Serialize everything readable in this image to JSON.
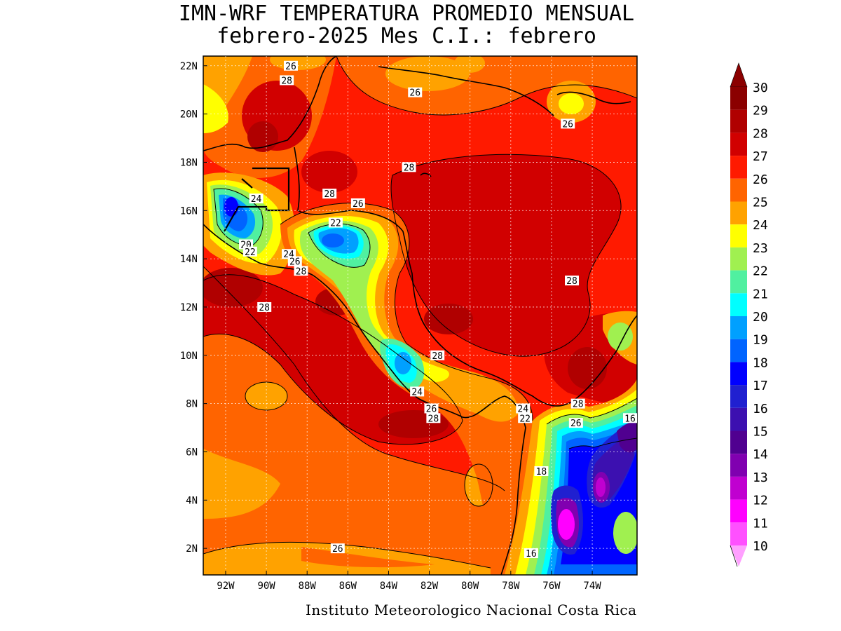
{
  "title_line1": "IMN-WRF  TEMPERATURA PROMEDIO MENSUAL",
  "title_line2": "febrero-2025 Mes C.I.: febrero",
  "credit": "Instituto Meteorologico Nacional Costa Rica",
  "map": {
    "lon_range": [
      -93.1,
      -71.8
    ],
    "lat_range": [
      0.9,
      22.4
    ],
    "lon_ticks": [
      {
        "value": -92,
        "label": "92W"
      },
      {
        "value": -90,
        "label": "90W"
      },
      {
        "value": -88,
        "label": "88W"
      },
      {
        "value": -86,
        "label": "86W"
      },
      {
        "value": -84,
        "label": "84W"
      },
      {
        "value": -82,
        "label": "82W"
      },
      {
        "value": -80,
        "label": "80W"
      },
      {
        "value": -78,
        "label": "78W"
      },
      {
        "value": -76,
        "label": "76W"
      },
      {
        "value": -74,
        "label": "74W"
      }
    ],
    "lat_ticks": [
      {
        "value": 22,
        "label": "22N"
      },
      {
        "value": 20,
        "label": "20N"
      },
      {
        "value": 18,
        "label": "18N"
      },
      {
        "value": 16,
        "label": "16N"
      },
      {
        "value": 14,
        "label": "14N"
      },
      {
        "value": 12,
        "label": "12N"
      },
      {
        "value": 10,
        "label": "10N"
      },
      {
        "value": 8,
        "label": "8N"
      },
      {
        "value": 6,
        "label": "6N"
      },
      {
        "value": 4,
        "label": "4N"
      },
      {
        "value": 2,
        "label": "2N"
      }
    ],
    "grid_lines": true,
    "contour_labels": [
      {
        "text": "26",
        "lon": -88.8,
        "lat": 22.0
      },
      {
        "text": "28",
        "lon": -89.0,
        "lat": 21.4
      },
      {
        "text": "26",
        "lon": -82.7,
        "lat": 20.9
      },
      {
        "text": "26",
        "lon": -75.2,
        "lat": 19.6
      },
      {
        "text": "28",
        "lon": -83.0,
        "lat": 17.8
      },
      {
        "text": "28",
        "lon": -86.9,
        "lat": 16.7
      },
      {
        "text": "26",
        "lon": -85.5,
        "lat": 16.3
      },
      {
        "text": "24",
        "lon": -90.5,
        "lat": 16.5
      },
      {
        "text": "22",
        "lon": -86.6,
        "lat": 15.5
      },
      {
        "text": "20",
        "lon": -91.0,
        "lat": 14.6
      },
      {
        "text": "22",
        "lon": -90.8,
        "lat": 14.3
      },
      {
        "text": "24",
        "lon": -88.9,
        "lat": 14.2
      },
      {
        "text": "26",
        "lon": -88.6,
        "lat": 13.9
      },
      {
        "text": "28",
        "lon": -88.3,
        "lat": 13.5
      },
      {
        "text": "28",
        "lon": -90.1,
        "lat": 12.0
      },
      {
        "text": "28",
        "lon": -75.0,
        "lat": 13.1
      },
      {
        "text": "28",
        "lon": -81.6,
        "lat": 10.0
      },
      {
        "text": "24",
        "lon": -82.6,
        "lat": 8.5
      },
      {
        "text": "26",
        "lon": -81.9,
        "lat": 7.8
      },
      {
        "text": "28",
        "lon": -81.8,
        "lat": 7.4
      },
      {
        "text": "24",
        "lon": -77.4,
        "lat": 7.8
      },
      {
        "text": "22",
        "lon": -77.3,
        "lat": 7.4
      },
      {
        "text": "28",
        "lon": -74.7,
        "lat": 8.0
      },
      {
        "text": "26",
        "lon": -74.8,
        "lat": 7.2
      },
      {
        "text": "16",
        "lon": -71.9,
        "lat": 7.4
      },
      {
        "text": "18",
        "lon": -76.5,
        "lat": 5.2
      },
      {
        "text": "16",
        "lon": -77.0,
        "lat": 1.8
      },
      {
        "text": "26",
        "lon": -86.5,
        "lat": 2.0
      }
    ]
  },
  "colorbar": {
    "levels": [
      {
        "label": "30",
        "color": "#8b0000"
      },
      {
        "label": "29",
        "color": "#b00000"
      },
      {
        "label": "28",
        "color": "#d10000"
      },
      {
        "label": "27",
        "color": "#ff1a00"
      },
      {
        "label": "26",
        "color": "#ff6400"
      },
      {
        "label": "25",
        "color": "#ffa200"
      },
      {
        "label": "24",
        "color": "#ffff00"
      },
      {
        "label": "23",
        "color": "#a0f050"
      },
      {
        "label": "22",
        "color": "#50f0a0"
      },
      {
        "label": "21",
        "color": "#00ffff"
      },
      {
        "label": "20",
        "color": "#00a0ff"
      },
      {
        "label": "19",
        "color": "#0064ff"
      },
      {
        "label": "18",
        "color": "#0000ff"
      },
      {
        "label": "17",
        "color": "#2020d0"
      },
      {
        "label": "16",
        "color": "#3c10b0"
      },
      {
        "label": "15",
        "color": "#500090"
      },
      {
        "label": "14",
        "color": "#8000b0"
      },
      {
        "label": "13",
        "color": "#c000d0"
      },
      {
        "label": "12",
        "color": "#ff00ff"
      },
      {
        "label": "11",
        "color": "#ff50ff"
      },
      {
        "label": "10",
        "color": "#ffa0ff"
      }
    ]
  }
}
